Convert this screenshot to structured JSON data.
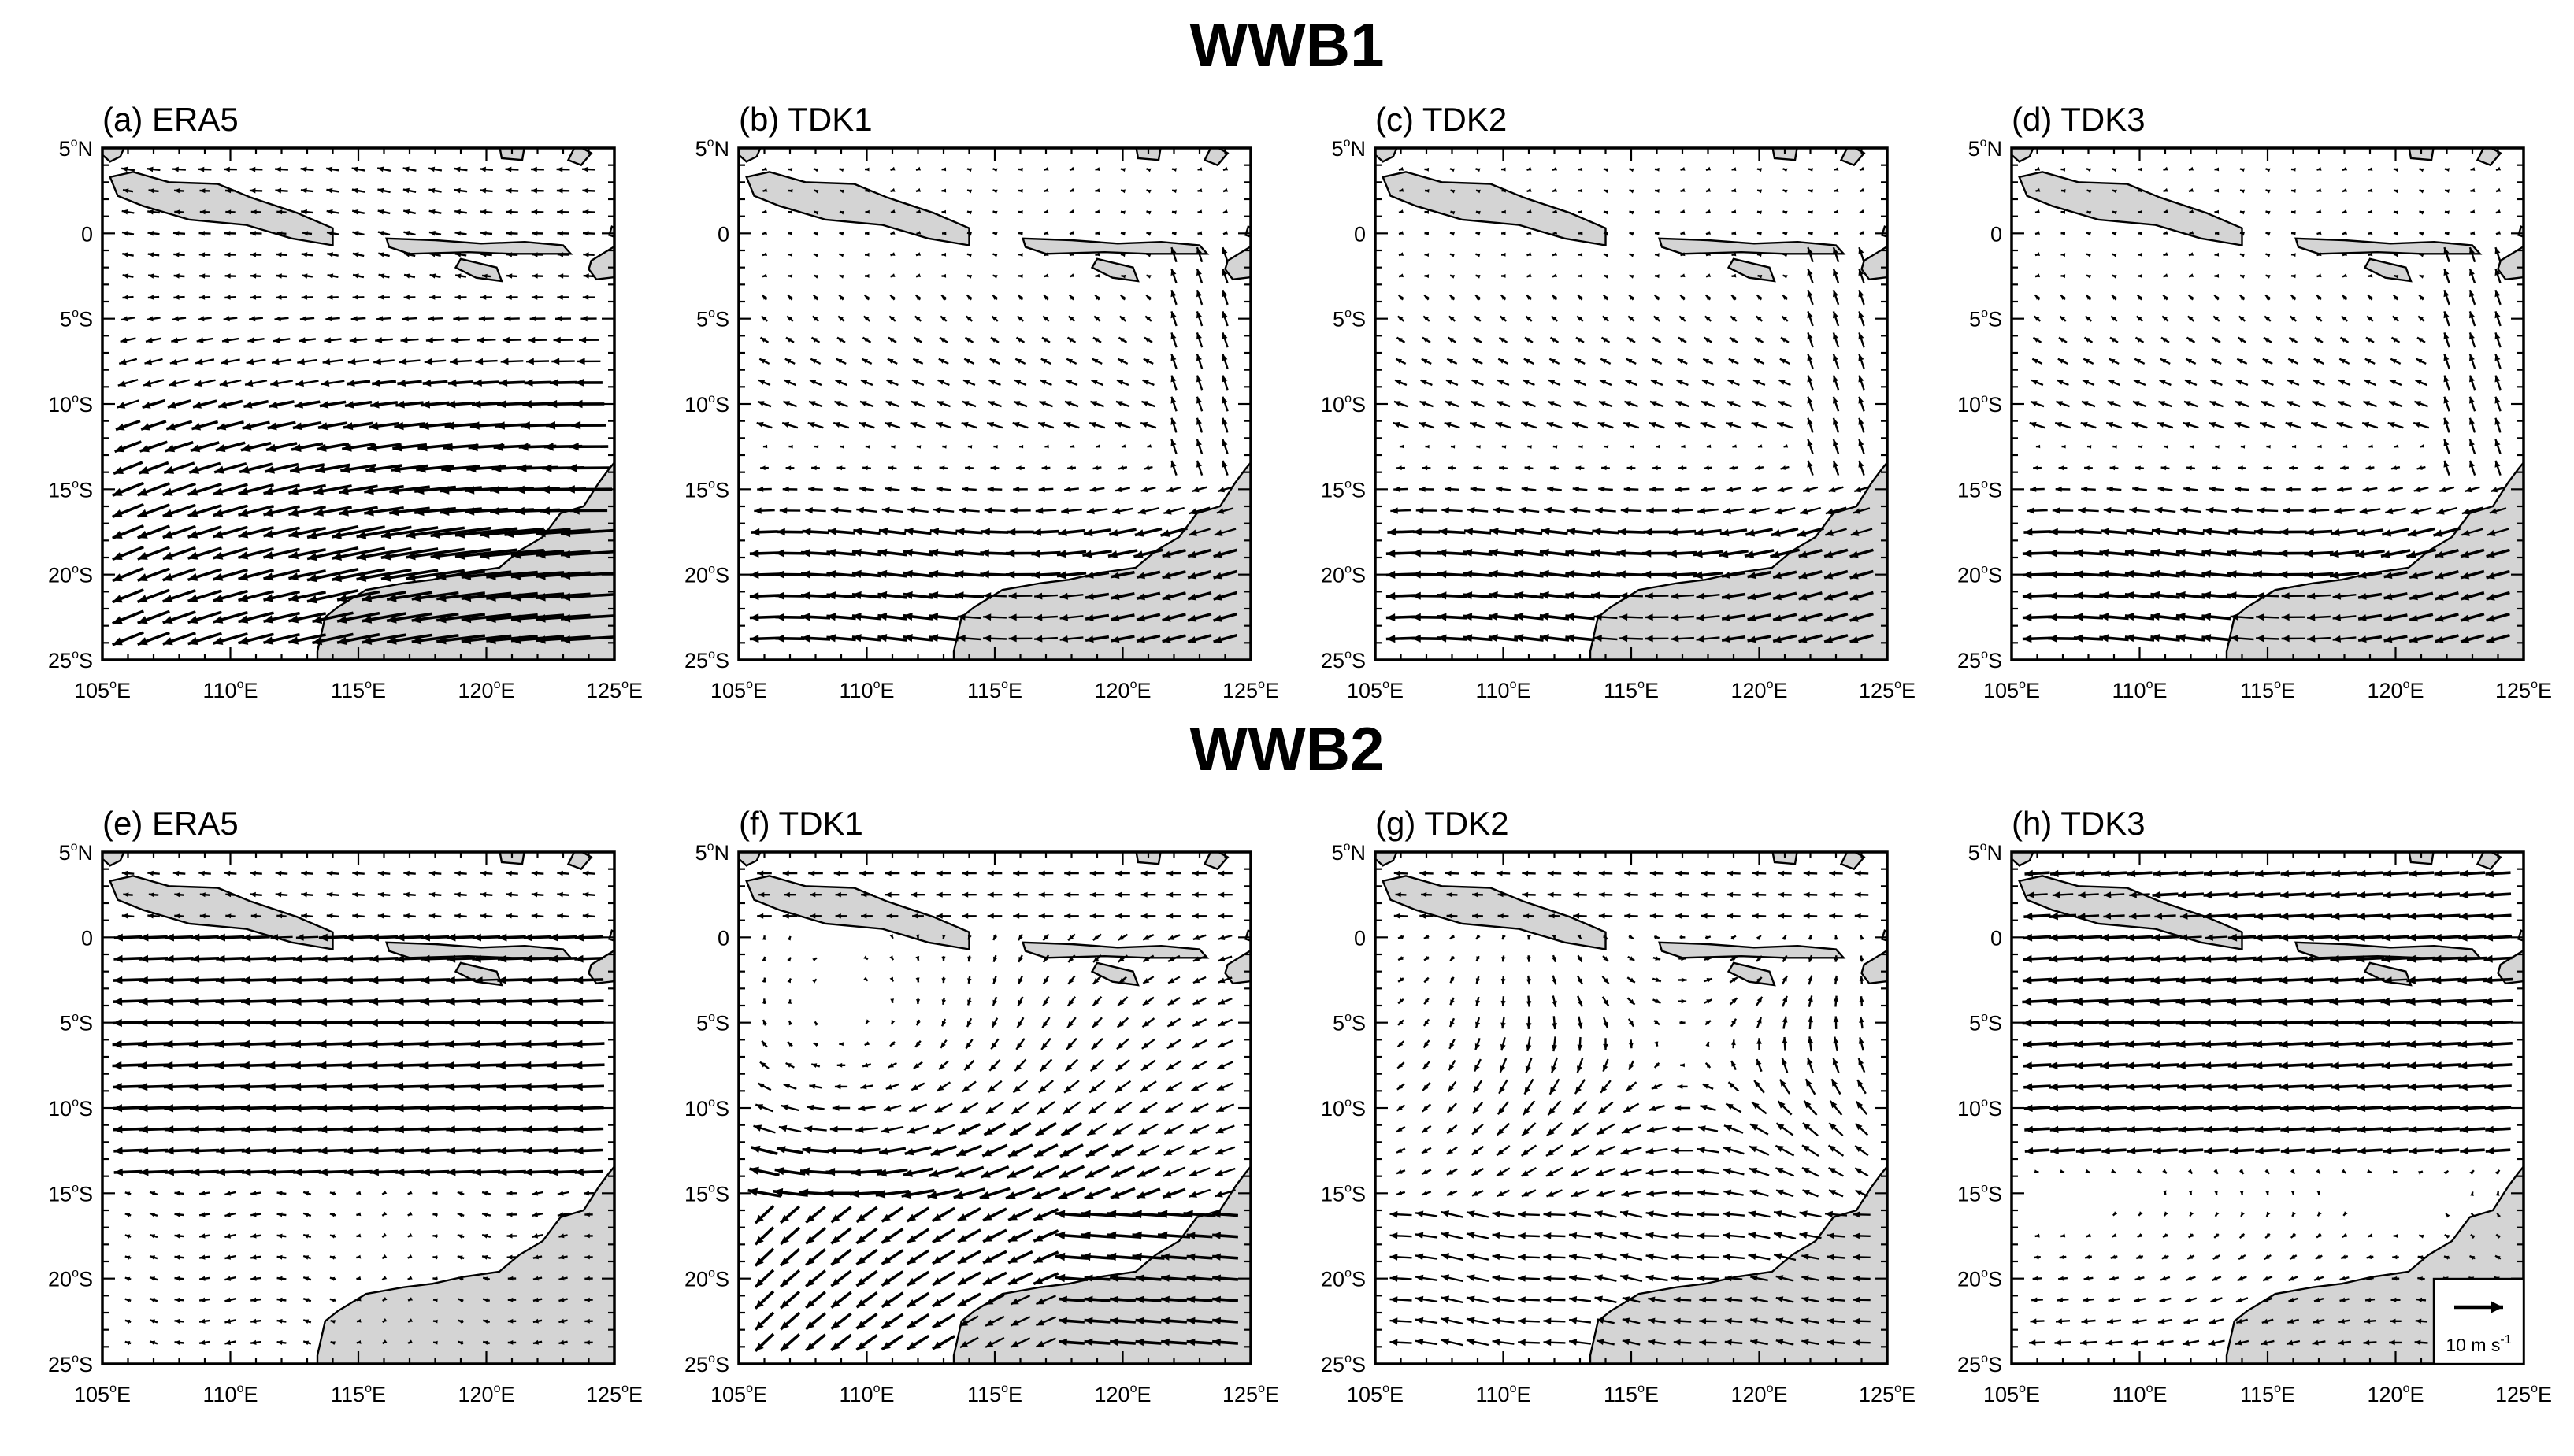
{
  "figure": {
    "rows": [
      {
        "title": "WWB1",
        "panels": [
          {
            "label": "(a) ERA5",
            "source": "ERA5",
            "pattern": "sw"
          },
          {
            "label": "(b) TDK1",
            "source": "TDK1",
            "pattern": "ew"
          },
          {
            "label": "(c) TDK2",
            "source": "TDK2",
            "pattern": "ew"
          },
          {
            "label": "(d) TDK3",
            "source": "TDK3",
            "pattern": "ew"
          }
        ]
      },
      {
        "title": "WWB2",
        "panels": [
          {
            "label": "(e) ERA5",
            "source": "ERA5",
            "pattern": "belt"
          },
          {
            "label": "(f) TDK1",
            "source": "TDK1",
            "pattern": "cyc"
          },
          {
            "label": "(g) TDK2",
            "source": "TDK2",
            "pattern": "vort"
          },
          {
            "label": "(h) TDK3",
            "source": "TDK3",
            "pattern": "belt2"
          }
        ]
      }
    ]
  },
  "axes": {
    "lon_range": [
      105,
      125
    ],
    "lat_range": [
      -25,
      5
    ],
    "lon_ticks": [
      {
        "num": "105",
        "deg": "o",
        "hem": "E"
      },
      {
        "num": "110",
        "deg": "o",
        "hem": "E"
      },
      {
        "num": "115",
        "deg": "o",
        "hem": "E"
      },
      {
        "num": "120",
        "deg": "o",
        "hem": "E"
      },
      {
        "num": "125",
        "deg": "o",
        "hem": "E"
      }
    ],
    "lat_ticks": [
      {
        "num": "5",
        "deg": "o",
        "hem": "N",
        "value": 5
      },
      {
        "num": "0",
        "deg": "",
        "hem": "",
        "value": 0
      },
      {
        "num": "5",
        "deg": "o",
        "hem": "S",
        "value": -5
      },
      {
        "num": "10",
        "deg": "o",
        "hem": "S",
        "value": -10
      },
      {
        "num": "15",
        "deg": "o",
        "hem": "S",
        "value": -15
      },
      {
        "num": "20",
        "deg": "o",
        "hem": "S",
        "value": -20
      },
      {
        "num": "25",
        "deg": "o",
        "hem": "S",
        "value": -25
      }
    ]
  },
  "reference_vector": {
    "label": "10 m s",
    "unit_exp": "-1",
    "magnitude": 10,
    "panel": "(h) TDK3"
  },
  "colors": {
    "land": "#d4d4d4",
    "arrow": "#000000",
    "coast": "#000000"
  }
}
